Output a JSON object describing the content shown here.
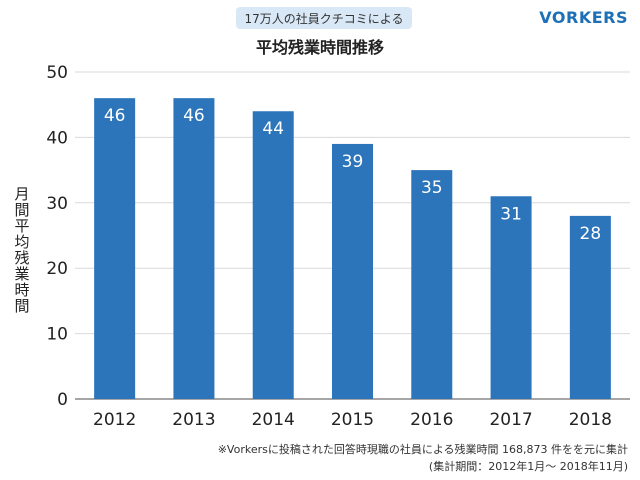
{
  "badge": "17万人の社員クチコミによる",
  "brand": "VORKERS",
  "footnote": {
    "line1": "※Vorkersに投稿された回答時現職の社員による残業時間 168,873 件をを元に集計",
    "line2": "(集計期間：2012年1月〜 2018年11月)"
  },
  "colors": {
    "bar": "#2d75bb",
    "gridline": "#d9d9d9",
    "axis": "#888888"
  },
  "chart_data": {
    "type": "bar",
    "title": "平均残業時間推移",
    "xlabel": "",
    "ylabel": "月間平均残業時間",
    "categories": [
      "2012",
      "2013",
      "2014",
      "2015",
      "2016",
      "2017",
      "2018"
    ],
    "values": [
      46,
      46,
      44,
      39,
      35,
      31,
      28
    ],
    "ylim": [
      0,
      50
    ],
    "yticks": [
      0,
      10,
      20,
      30,
      40,
      50
    ],
    "grid": true,
    "legend": "none"
  }
}
